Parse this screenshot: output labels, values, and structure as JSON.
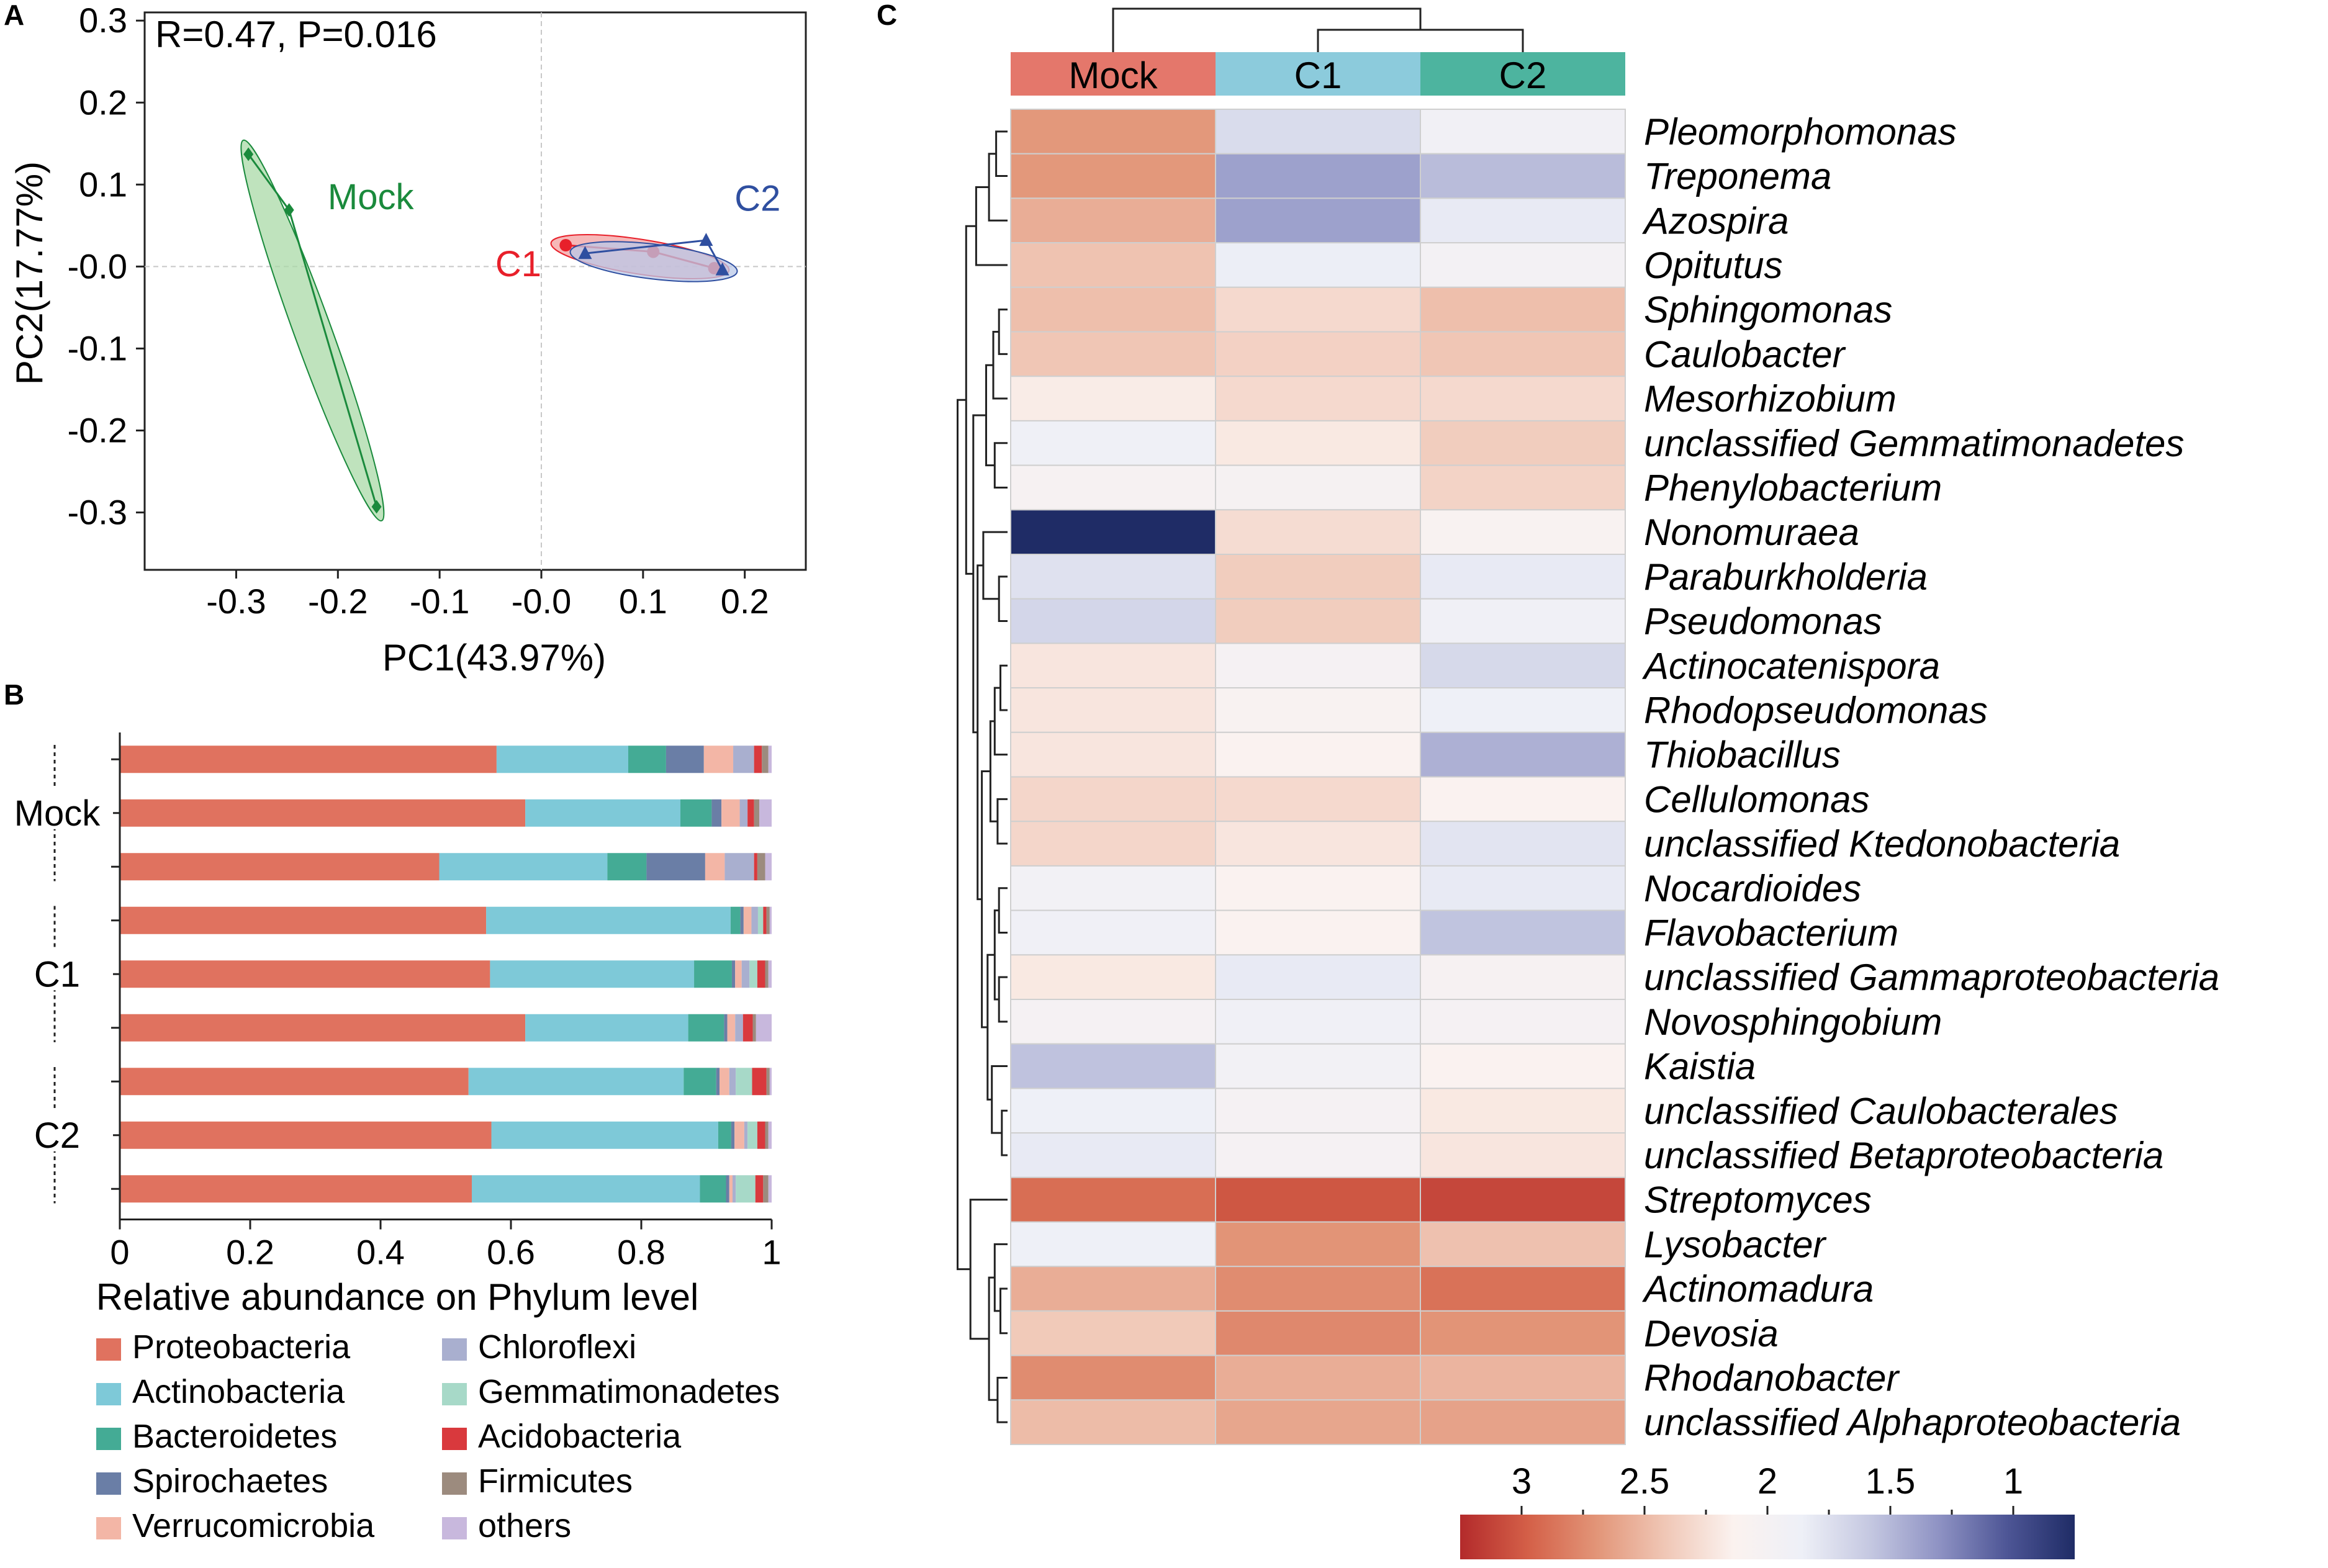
{
  "panels": {
    "a": "A",
    "b": "B",
    "c": "C"
  },
  "chart_data": [
    {
      "type": "scatter",
      "panel": "A",
      "annotation": "R=0.47, P=0.016",
      "xlabel": "PC1(43.97%)",
      "ylabel": "PC2(17.77%)",
      "xlim": [
        -0.39,
        0.26
      ],
      "ylim": [
        -0.37,
        0.31
      ],
      "xticks": [
        -0.3,
        -0.2,
        -0.1,
        0.0,
        0.1,
        0.2
      ],
      "xtick_labels": [
        "-0.3",
        "-0.2",
        "-0.1",
        "-0.0",
        "0.1",
        "0.2"
      ],
      "yticks": [
        0.3,
        0.2,
        0.1,
        0.0,
        -0.1,
        -0.2,
        -0.3
      ],
      "ytick_labels": [
        "0.3",
        "0.2",
        "0.1",
        "-0.0",
        "-0.1",
        "-0.2",
        "-0.3"
      ],
      "reference_lines": {
        "x": 0.0,
        "y": 0.0
      },
      "series": [
        {
          "name": "Mock",
          "color": "#1a8a3c",
          "fill": "#a9d9a7",
          "marker": "diamond",
          "points": [
            [
              -0.288,
              0.137
            ],
            [
              -0.248,
              0.069
            ],
            [
              -0.162,
              -0.293
            ]
          ],
          "label_at": [
            -0.21,
            0.07
          ]
        },
        {
          "name": "C1",
          "color": "#e8202a",
          "fill": "#f3a0a0",
          "marker": "circle",
          "points": [
            [
              0.024,
              0.026
            ],
            [
              0.11,
              0.018
            ],
            [
              0.17,
              -0.002
            ]
          ],
          "label_at": [
            0.0,
            -0.012
          ]
        },
        {
          "name": "C2",
          "color": "#2f4fa0",
          "fill": "#b9c8e8",
          "marker": "triangle",
          "points": [
            [
              0.043,
              0.016
            ],
            [
              0.162,
              0.032
            ],
            [
              0.178,
              -0.004
            ]
          ],
          "label_at": [
            0.19,
            0.068
          ]
        }
      ]
    },
    {
      "type": "bar",
      "panel": "B",
      "orientation": "horizontal",
      "stacked": true,
      "xlabel": "Relative abundance on Phylum level",
      "xlim": [
        0,
        1
      ],
      "xticks": [
        0,
        0.2,
        0.4,
        0.6,
        0.8,
        1
      ],
      "xtick_labels": [
        "0",
        "0.2",
        "0.4",
        "0.6",
        "0.8",
        "1"
      ],
      "groups": [
        {
          "name": "Mock",
          "rows": [
            0,
            1,
            2
          ]
        },
        {
          "name": "C1",
          "rows": [
            3,
            4,
            5
          ]
        },
        {
          "name": "C2",
          "rows": [
            6,
            7,
            8
          ]
        }
      ],
      "phyla": [
        "Proteobacteria",
        "Actinobacteria",
        "Bacteroidetes",
        "Spirochaetes",
        "Verrucomicrobia",
        "Chloroflexi",
        "Gemmatimonadetes",
        "Acidobacteria",
        "Firmicutes",
        "others"
      ],
      "colors": [
        "#e0725f",
        "#7ec9d8",
        "#44ab95",
        "#6a7ea6",
        "#f3b6a6",
        "#a9afcf",
        "#a7d9c8",
        "#d9393d",
        "#9c8b7e",
        "#c8b8dd"
      ],
      "samples": [
        [
          0.578,
          0.202,
          0.058,
          0.058,
          0.045,
          0.032,
          0.0,
          0.012,
          0.01,
          0.005
        ],
        [
          0.622,
          0.238,
          0.048,
          0.015,
          0.028,
          0.012,
          0.0,
          0.01,
          0.008,
          0.019
        ],
        [
          0.49,
          0.258,
          0.06,
          0.09,
          0.03,
          0.045,
          0.0,
          0.005,
          0.012,
          0.01
        ],
        [
          0.562,
          0.375,
          0.015,
          0.005,
          0.012,
          0.01,
          0.008,
          0.005,
          0.005,
          0.003
        ],
        [
          0.568,
          0.313,
          0.058,
          0.005,
          0.01,
          0.012,
          0.012,
          0.012,
          0.005,
          0.005
        ],
        [
          0.622,
          0.25,
          0.055,
          0.005,
          0.012,
          0.012,
          0.0,
          0.015,
          0.005,
          0.024
        ],
        [
          0.535,
          0.33,
          0.05,
          0.005,
          0.015,
          0.01,
          0.025,
          0.022,
          0.005,
          0.003
        ],
        [
          0.57,
          0.348,
          0.02,
          0.005,
          0.015,
          0.005,
          0.015,
          0.012,
          0.005,
          0.005
        ],
        [
          0.54,
          0.35,
          0.04,
          0.005,
          0.005,
          0.005,
          0.03,
          0.012,
          0.008,
          0.005
        ]
      ]
    },
    {
      "type": "heatmap",
      "panel": "C",
      "columns": [
        "Mock",
        "C1",
        "C2"
      ],
      "column_colors": [
        "#e4776b",
        "#8ccbdc",
        "#4db49f"
      ],
      "rows": [
        "Pleomorphomonas",
        "Treponema",
        "Azospira",
        "Opitutus",
        "Sphingomonas",
        "Caulobacter",
        "Mesorhizobium",
        "unclassified Gemmatimonadetes",
        "Phenylobacterium",
        "Nonomuraea",
        "Paraburkholderia",
        "Pseudomonas",
        "Actinocatenispora",
        "Rhodopseudomonas",
        "Thiobacillus",
        "Cellulomonas",
        "unclassified Ktedonobacteria",
        "Nocardioides",
        "Flavobacterium",
        "unclassified Gammaproteobacteria",
        "Novosphingobium",
        "Kaistia",
        "unclassified Caulobacterales",
        "unclassified Betaproteobacteria",
        "Streptomyces",
        "Lysobacter",
        "Actinomadura",
        "Devosia",
        "Rhodanobacter",
        "unclassified Alphaproteobacteria"
      ],
      "values": [
        [
          2.68,
          1.72,
          1.93
        ],
        [
          2.68,
          1.38,
          1.52
        ],
        [
          2.56,
          1.38,
          1.82
        ],
        [
          2.44,
          1.85,
          1.96
        ],
        [
          2.46,
          2.3,
          2.46
        ],
        [
          2.42,
          2.35,
          2.42
        ],
        [
          2.18,
          2.3,
          2.3
        ],
        [
          1.88,
          2.2,
          2.38
        ],
        [
          2.04,
          2.02,
          2.34
        ],
        [
          0.65,
          2.28,
          2.08
        ],
        [
          1.76,
          2.38,
          1.82
        ],
        [
          1.68,
          2.38,
          1.9
        ],
        [
          2.22,
          2.0,
          1.7
        ],
        [
          2.22,
          2.08,
          1.86
        ],
        [
          2.22,
          2.12,
          1.46
        ],
        [
          2.32,
          2.3,
          2.12
        ],
        [
          2.32,
          2.22,
          1.78
        ],
        [
          1.94,
          2.12,
          1.82
        ],
        [
          1.9,
          2.12,
          1.56
        ],
        [
          2.2,
          1.82,
          2.04
        ],
        [
          2.0,
          1.9,
          2.0
        ],
        [
          1.55,
          1.94,
          2.12
        ],
        [
          1.86,
          2.0,
          2.2
        ],
        [
          1.82,
          2.0,
          2.22
        ],
        [
          2.9,
          3.02,
          3.1
        ],
        [
          1.86,
          2.7,
          2.45
        ],
        [
          2.56,
          2.74,
          2.88
        ],
        [
          2.4,
          2.76,
          2.7
        ],
        [
          2.74,
          2.56,
          2.52
        ],
        [
          2.48,
          2.6,
          2.62
        ]
      ],
      "colorbar": {
        "ticks": [
          3,
          2.5,
          2,
          1.5,
          1
        ],
        "tick_labels": [
          "3",
          "2.5",
          "2",
          "1.5",
          "1"
        ],
        "range": [
          3.25,
          0.75
        ],
        "colors": [
          "#b32a2b",
          "#d46048",
          "#e29578",
          "#f0c7b6",
          "#fbf2ef",
          "#eef0f7",
          "#c5c8e1",
          "#8f93c4",
          "#4e5696",
          "#1f2c66"
        ]
      }
    }
  ]
}
